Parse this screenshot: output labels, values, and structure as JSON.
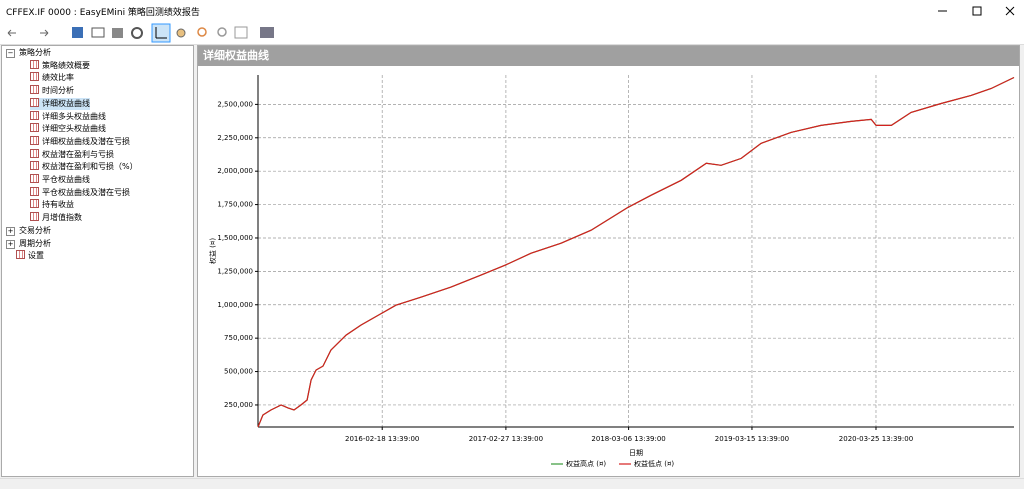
{
  "window": {
    "title": "CFFEX.IF 0000 : EasyEMini 策略回测绩效报告"
  },
  "tree": [
    {
      "label": "策略分析",
      "children": [
        {
          "label": "策略绩效概要"
        },
        {
          "label": "绩效比率"
        },
        {
          "label": "时间分析"
        },
        {
          "label": "详细权益曲线"
        },
        {
          "label": "详细多头权益曲线"
        },
        {
          "label": "详细空头权益曲线"
        },
        {
          "label": "详细权益曲线及潜在亏损"
        },
        {
          "label": "权益潜在盈利与亏损"
        },
        {
          "label": "权益潜在盈利和亏损（%）"
        },
        {
          "label": "平仓权益曲线"
        },
        {
          "label": "平仓权益曲线及潜在亏损"
        },
        {
          "label": "持有收益"
        },
        {
          "label": "月增值指数"
        }
      ]
    },
    {
      "label": "交易分析"
    },
    {
      "label": "周期分析"
    },
    {
      "label": "设置"
    }
  ],
  "panel": {
    "title": "详细权益曲线"
  },
  "chart_data": {
    "type": "line",
    "x_label": "日期",
    "y_label": "权益 (¤)",
    "x": [
      "2015-02-07",
      "2015-02-22",
      "2015-03-18",
      "2015-04-18",
      "2015-05-09",
      "2015-05-27",
      "2015-06-17",
      "2015-07-06",
      "2015-07-18",
      "2015-08-02",
      "2015-08-23",
      "2015-09-16",
      "2015-11-01",
      "2015-12-16",
      "2016-02-18",
      "2016-03-31",
      "2016-06-15",
      "2016-09-14",
      "2016-12-14",
      "2017-02-25",
      "2017-05-15",
      "2017-08-14",
      "2017-11-13",
      "2018-03-05",
      "2018-05-14",
      "2018-08-13",
      "2018-10-28",
      "2018-12-12",
      "2019-02-11",
      "2019-04-12",
      "2019-07-12",
      "2019-10-11",
      "2020-01-10",
      "2020-03-11",
      "2020-03-26",
      "2020-05-11",
      "2020-07-10",
      "2020-10-09",
      "2021-01-08",
      "2021-03-10",
      "2021-05-18"
    ],
    "series": [
      {
        "name": "权益高点 (¤)",
        "color": "#3a9a3a",
        "values": [
          85000,
          175000,
          212000,
          250000,
          228000,
          212000,
          250000,
          287000,
          437000,
          512000,
          541000,
          661000,
          773000,
          848000,
          938000,
          997000,
          1057000,
          1132000,
          1222000,
          1296000,
          1386000,
          1461000,
          1558000,
          1730000,
          1820000,
          1932000,
          2059000,
          2044000,
          2096000,
          2208000,
          2290000,
          2343000,
          2373000,
          2388000,
          2343000,
          2343000,
          2440000,
          2507000,
          2567000,
          2619000,
          2701000
        ]
      },
      {
        "name": "权益低点 (¤)",
        "color": "#d42020",
        "values": [
          85000,
          175000,
          212000,
          250000,
          228000,
          212000,
          250000,
          287000,
          437000,
          512000,
          541000,
          661000,
          773000,
          848000,
          938000,
          997000,
          1057000,
          1132000,
          1222000,
          1296000,
          1386000,
          1461000,
          1558000,
          1730000,
          1820000,
          1932000,
          2059000,
          2044000,
          2096000,
          2208000,
          2290000,
          2343000,
          2373000,
          2388000,
          2343000,
          2343000,
          2440000,
          2507000,
          2567000,
          2619000,
          2701000
        ]
      }
    ],
    "xlim": [
      "2015-02-07",
      "2021-05-18"
    ],
    "xticks": [
      "2016-02-18 13:39:00",
      "2017-02-27 13:39:00",
      "2018-03-06 13:39:00",
      "2019-03-15 13:39:00",
      "2020-03-25 13:39:00"
    ],
    "ylim": [
      85000,
      2720000
    ],
    "yticks": [
      {
        "value": 250000,
        "label": "250,000"
      },
      {
        "value": 500000,
        "label": "500,000"
      },
      {
        "value": 750000,
        "label": "750,000"
      },
      {
        "value": 1000000,
        "label": "1,000,000"
      },
      {
        "value": 1250000,
        "label": "1,250,000"
      },
      {
        "value": 1500000,
        "label": "1,500,000"
      },
      {
        "value": 1750000,
        "label": "1,750,000"
      },
      {
        "value": 2000000,
        "label": "2,000,000"
      },
      {
        "value": 2250000,
        "label": "2,250,000"
      },
      {
        "value": 2500000,
        "label": "2,500,000"
      }
    ],
    "grid": true,
    "legend": "bottom"
  }
}
